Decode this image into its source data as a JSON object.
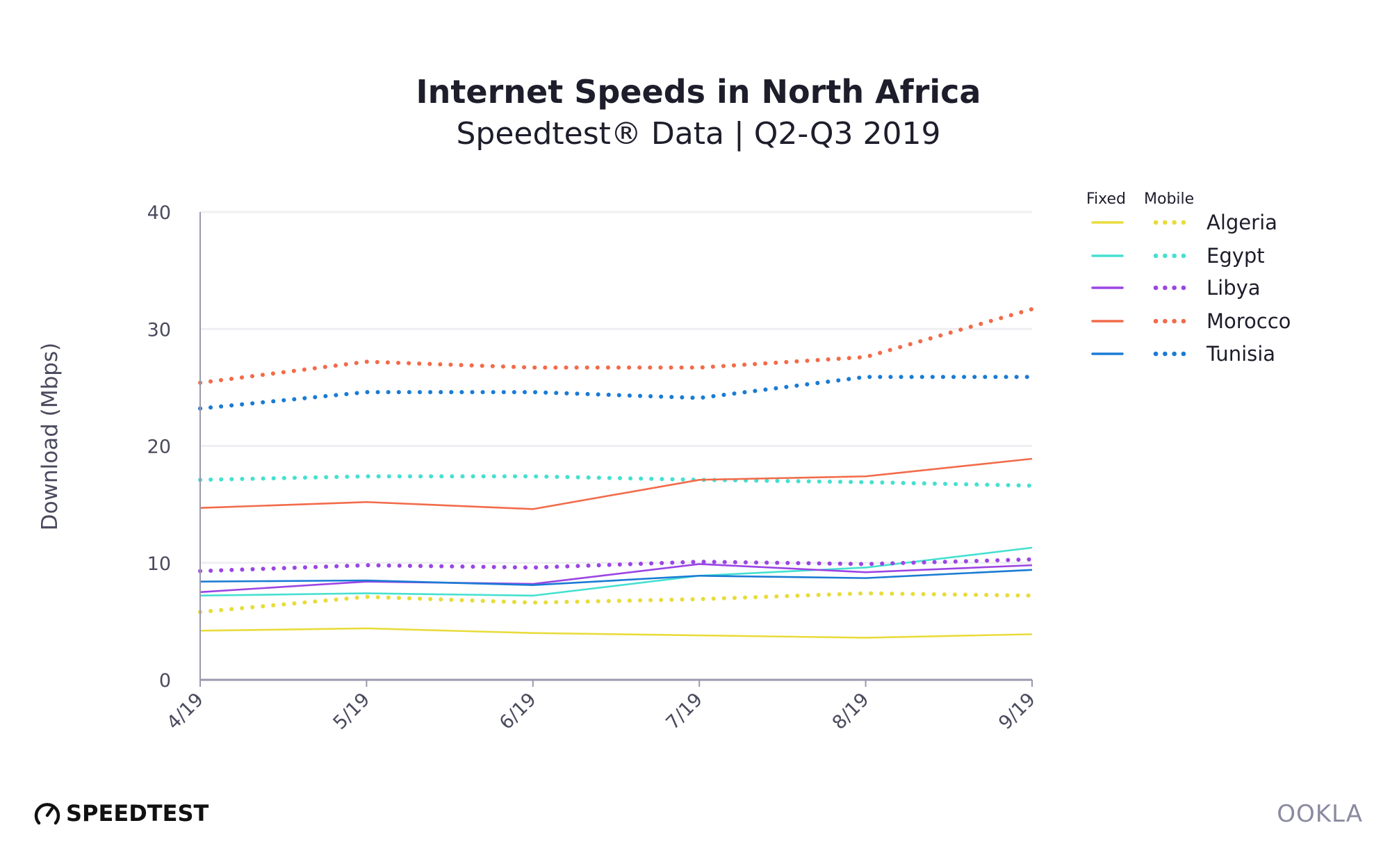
{
  "chart_data": {
    "type": "line",
    "title": "Internet Speeds in North Africa",
    "subtitle": "Speedtest® Data | Q2-Q3 2019",
    "xlabel": "",
    "ylabel": "Download (Mbps)",
    "categories": [
      "4/19",
      "5/19",
      "6/19",
      "7/19",
      "8/19",
      "9/19"
    ],
    "ylim": [
      0,
      40
    ],
    "yticks": [
      "0",
      "10",
      "20",
      "30",
      "40"
    ],
    "grid": true,
    "legend": {
      "placement": "right",
      "headers": [
        "Fixed",
        "Mobile"
      ],
      "countries": [
        "Algeria",
        "Egypt",
        "Libya",
        "Morocco",
        "Tunisia"
      ]
    },
    "series": [
      {
        "name": "Algeria",
        "type": "Fixed",
        "color": "#e8dc3c",
        "style": "solid",
        "values": [
          4.2,
          4.4,
          4.0,
          3.8,
          3.6,
          3.9
        ]
      },
      {
        "name": "Algeria",
        "type": "Mobile",
        "color": "#e8dc3c",
        "style": "dotted",
        "values": [
          5.8,
          7.1,
          6.6,
          6.9,
          7.4,
          7.2
        ]
      },
      {
        "name": "Egypt",
        "type": "Fixed",
        "color": "#45e0d0",
        "style": "solid",
        "values": [
          7.2,
          7.4,
          7.2,
          8.9,
          9.6,
          11.3
        ]
      },
      {
        "name": "Egypt",
        "type": "Mobile",
        "color": "#45e0d0",
        "style": "dotted",
        "values": [
          17.1,
          17.4,
          17.4,
          17.1,
          16.9,
          16.6
        ]
      },
      {
        "name": "Libya",
        "type": "Fixed",
        "color": "#9b45e4",
        "style": "solid",
        "values": [
          7.5,
          8.4,
          8.2,
          9.9,
          9.2,
          9.8
        ]
      },
      {
        "name": "Libya",
        "type": "Mobile",
        "color": "#9b45e4",
        "style": "dotted",
        "values": [
          9.3,
          9.8,
          9.6,
          10.1,
          9.9,
          10.3
        ]
      },
      {
        "name": "Morocco",
        "type": "Fixed",
        "color": "#f26b4a",
        "style": "solid",
        "values": [
          14.7,
          15.2,
          14.6,
          17.1,
          17.4,
          18.9
        ]
      },
      {
        "name": "Morocco",
        "type": "Mobile",
        "color": "#f26b4a",
        "style": "dotted",
        "values": [
          25.4,
          27.2,
          26.7,
          26.7,
          27.6,
          31.7
        ]
      },
      {
        "name": "Tunisia",
        "type": "Fixed",
        "color": "#1a7bd4",
        "style": "solid",
        "values": [
          8.4,
          8.5,
          8.1,
          8.9,
          8.7,
          9.4
        ]
      },
      {
        "name": "Tunisia",
        "type": "Mobile",
        "color": "#1a7bd4",
        "style": "dotted",
        "values": [
          23.2,
          24.6,
          24.6,
          24.1,
          25.9,
          25.9
        ]
      }
    ]
  },
  "branding": {
    "speedtest": "SPEEDTEST",
    "ookla": "OOKLA"
  }
}
